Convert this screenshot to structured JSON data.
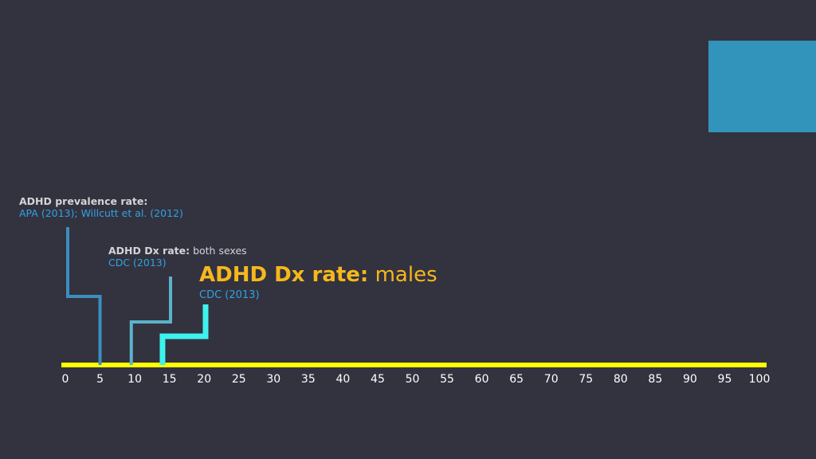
{
  "colors": {
    "background": "#33323f",
    "axis": "#ffff00",
    "marker_prevalence": "#3a8fbf",
    "marker_dx_both": "#5bb3c9",
    "marker_dx_males": "#3ef2ee",
    "corner_square": "#3293bb"
  },
  "callouts": {
    "prevalence": {
      "heading": "ADHD prevalence rate:",
      "source": "APA (2013); Willcutt et al. (2012)"
    },
    "dx_both": {
      "heading": "ADHD Dx rate:",
      "detail": " both sexes",
      "source": "CDC (2013)"
    },
    "dx_males": {
      "heading": "ADHD Dx rate:",
      "detail": " males",
      "source": "CDC (2013)"
    }
  },
  "chart_data": {
    "type": "timeline",
    "axis_min": 0,
    "axis_max": 100,
    "ticks": [
      "0",
      "5",
      "10",
      "15",
      "20",
      "25",
      "30",
      "35",
      "40",
      "45",
      "50",
      "55",
      "60",
      "65",
      "70",
      "75",
      "80",
      "85",
      "90",
      "95",
      "100"
    ],
    "markers": [
      {
        "id": "prevalence",
        "value": 5
      },
      {
        "id": "dx_both",
        "value": 9.5
      },
      {
        "id": "dx_males",
        "value": 14
      }
    ]
  }
}
